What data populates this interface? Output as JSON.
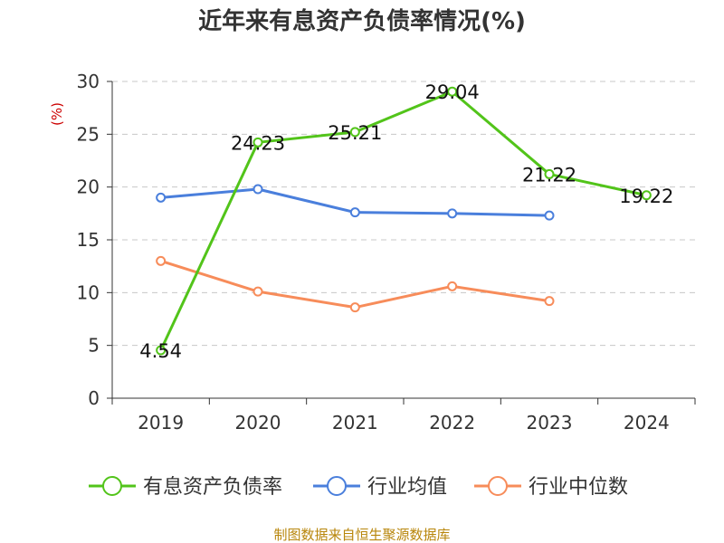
{
  "chart_data": {
    "type": "line",
    "title": "近年来有息资产负债率情况(%)",
    "ylabel": "(%)",
    "xlabel": "",
    "categories": [
      "2019",
      "2020",
      "2021",
      "2022",
      "2023",
      "2024"
    ],
    "ylim": [
      0,
      30
    ],
    "yticks": [
      0,
      5,
      10,
      15,
      20,
      25,
      30
    ],
    "grid": true,
    "legend_position": "bottom",
    "series": [
      {
        "name": "有息资产负债率",
        "color": "#52c41a",
        "values": [
          4.54,
          24.23,
          25.21,
          29.04,
          21.22,
          19.22
        ],
        "labels": [
          "4.54",
          "24.23",
          "25.21",
          "29.04",
          "21.22",
          "19.22"
        ]
      },
      {
        "name": "行业均值",
        "color": "#4a7fdc",
        "values": [
          19.0,
          19.8,
          17.6,
          17.5,
          17.3,
          null
        ]
      },
      {
        "name": "行业中位数",
        "color": "#f78c5a",
        "values": [
          13.0,
          10.1,
          8.6,
          10.6,
          9.2,
          null
        ]
      }
    ],
    "source": "制图数据来自恒生聚源数据库"
  }
}
